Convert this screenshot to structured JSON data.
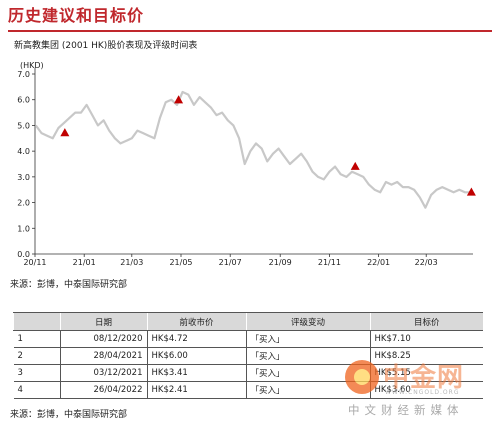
{
  "page_title": "历史建议和目标价",
  "chart_subtitle": "新高教集团 (2001 HK)股价表现及评级时间表",
  "source_1": "来源：彭博，中泰国际研究部",
  "source_2": "来源：彭博，中泰国际研究部",
  "chart_data": {
    "type": "line",
    "ylabel": "(HKD)",
    "ylim": [
      0,
      7
    ],
    "yticks": [
      "0.0",
      "1.0",
      "2.0",
      "3.0",
      "4.0",
      "5.0",
      "6.0",
      "7.0"
    ],
    "x_tick_labels": [
      "20/11",
      "21/01",
      "21/03",
      "21/05",
      "21/07",
      "21/09",
      "21/11",
      "22/01",
      "22/03"
    ],
    "x_tick_dates": [
      "2020-11-01",
      "2021-01-01",
      "2021-03-01",
      "2021-05-01",
      "2021-07-01",
      "2021-09-01",
      "2021-11-01",
      "2022-01-01",
      "2022-03-01"
    ],
    "xlim": [
      "2020-11-01",
      "2022-04-28"
    ],
    "grid": false,
    "line_color": "#c8c8c8",
    "marker_color": "#c00000",
    "series": [
      {
        "dates": [
          "2020-11-02",
          "2020-11-09",
          "2020-11-16",
          "2020-11-23",
          "2020-11-30",
          "2020-12-07",
          "2020-12-14",
          "2020-12-21",
          "2020-12-28",
          "2021-01-04",
          "2021-01-11",
          "2021-01-18",
          "2021-01-25",
          "2021-02-01",
          "2021-02-08",
          "2021-02-15",
          "2021-02-22",
          "2021-03-01",
          "2021-03-08",
          "2021-03-15",
          "2021-03-22",
          "2021-03-29",
          "2021-04-05",
          "2021-04-12",
          "2021-04-19",
          "2021-04-26",
          "2021-05-03",
          "2021-05-10",
          "2021-05-17",
          "2021-05-24",
          "2021-05-31",
          "2021-06-07",
          "2021-06-14",
          "2021-06-21",
          "2021-06-28",
          "2021-07-05",
          "2021-07-12",
          "2021-07-19",
          "2021-07-26",
          "2021-08-02",
          "2021-08-09",
          "2021-08-16",
          "2021-08-23",
          "2021-08-30",
          "2021-09-06",
          "2021-09-13",
          "2021-09-20",
          "2021-09-27",
          "2021-10-04",
          "2021-10-11",
          "2021-10-18",
          "2021-10-25",
          "2021-11-01",
          "2021-11-08",
          "2021-11-15",
          "2021-11-22",
          "2021-11-29",
          "2021-12-06",
          "2021-12-13",
          "2021-12-20",
          "2021-12-27",
          "2022-01-03",
          "2022-01-10",
          "2022-01-17",
          "2022-01-24",
          "2022-01-31",
          "2022-02-07",
          "2022-02-14",
          "2022-02-21",
          "2022-02-28",
          "2022-03-07",
          "2022-03-14",
          "2022-03-21",
          "2022-03-28",
          "2022-04-04",
          "2022-04-11",
          "2022-04-18",
          "2022-04-25"
        ],
        "values": [
          5.0,
          4.7,
          4.6,
          4.5,
          4.9,
          5.1,
          5.3,
          5.5,
          5.5,
          5.8,
          5.4,
          5.0,
          5.2,
          4.8,
          4.5,
          4.3,
          4.4,
          4.5,
          4.8,
          4.7,
          4.6,
          4.5,
          5.3,
          5.9,
          6.0,
          5.8,
          6.3,
          6.2,
          5.8,
          6.1,
          5.9,
          5.7,
          5.4,
          5.5,
          5.2,
          5.0,
          4.5,
          3.5,
          4.0,
          4.3,
          4.1,
          3.6,
          3.9,
          4.1,
          3.8,
          3.5,
          3.7,
          3.9,
          3.6,
          3.2,
          3.0,
          2.9,
          3.2,
          3.4,
          3.1,
          3.0,
          3.2,
          3.1,
          3.0,
          2.7,
          2.5,
          2.4,
          2.8,
          2.7,
          2.8,
          2.6,
          2.6,
          2.5,
          2.2,
          1.8,
          2.3,
          2.5,
          2.6,
          2.5,
          2.4,
          2.5,
          2.4,
          2.4
        ]
      }
    ],
    "rating_points": [
      {
        "date": "2020-12-08",
        "value": 4.72
      },
      {
        "date": "2021-04-28",
        "value": 6.0
      },
      {
        "date": "2021-12-03",
        "value": 3.41
      },
      {
        "date": "2022-04-26",
        "value": 2.41
      }
    ]
  },
  "table": {
    "headers": [
      "",
      "日期",
      "前收市价",
      "评级变动",
      "目标价"
    ],
    "rows": [
      {
        "no": "1",
        "date": "08/12/2020",
        "price": "HK$4.72",
        "rating": "「买入」",
        "target": "HK$7.10"
      },
      {
        "no": "2",
        "date": "28/04/2021",
        "price": "HK$6.00",
        "rating": "「买入」",
        "target": "HK$8.25"
      },
      {
        "no": "3",
        "date": "03/12/2021",
        "price": "HK$3.41",
        "rating": "「买入」",
        "target": "HK$5.15"
      },
      {
        "no": "4",
        "date": "26/04/2022",
        "price": "HK$2.41",
        "rating": "「买入」",
        "target": "HK$3.60"
      }
    ]
  },
  "watermark": {
    "name": "中金网",
    "url": "WWW.CNGOLD.ORG",
    "tagline": "中文财经新媒体"
  }
}
